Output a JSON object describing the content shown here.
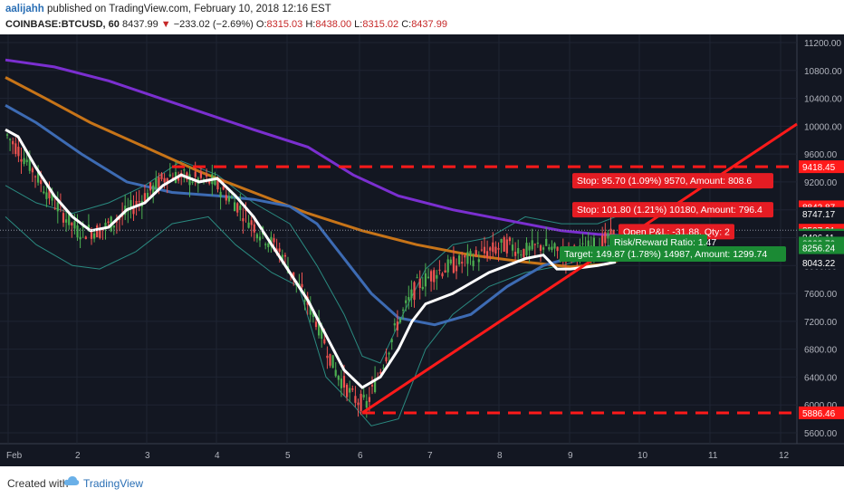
{
  "header": {
    "author": "aalijahh",
    "published": "published on TradingView.com, February 10, 2018 12:16 EST",
    "symbol": "COINBASE:BTCUSD, 60",
    "last": "8437.99",
    "change": "−233.02 (−2.69%)",
    "o_label": "O:",
    "o_val": "8315.03",
    "h_label": "H:",
    "h_val": "8438.00",
    "l_label": "L:",
    "l_val": "8315.02",
    "c_label": "C:",
    "c_val": "8437.99"
  },
  "footer": {
    "created": "Created with",
    "brand": "TradingView"
  },
  "colors": {
    "bg": "#131722",
    "grid": "#1f2433",
    "up": "#4caf50",
    "down": "#ef5350",
    "ma_white": "#ffffff",
    "ma_blue": "#3d6bb3",
    "ma_orange": "#c77418",
    "ma_purple": "#7b2fd0",
    "boll": "#2a8a80",
    "level": "#ff1a1a",
    "trend": "#ff1a1a"
  },
  "chart_data": {
    "type": "candlestick",
    "ylim": [
      5500,
      11300
    ],
    "y_ticks": [
      "11200.00",
      "10800.00",
      "10400.00",
      "10000.00",
      "9600.00",
      "9200.00",
      "8800.00",
      "8400.00",
      "8000.00",
      "7600.00",
      "7200.00",
      "6800.00",
      "6400.00",
      "6000.00",
      "5600.00"
    ],
    "x_ticks": [
      "Feb",
      "2",
      "3",
      "4",
      "5",
      "6",
      "7",
      "8",
      "9",
      "10",
      "11",
      "12"
    ],
    "price_labels": [
      {
        "text": "9418.45",
        "color": "#ff1a1a",
        "price": 9418.45
      },
      {
        "text": "8842.87",
        "color": "#ff1a1a",
        "price": 8842.87
      },
      {
        "text": "8747.17",
        "color": "#131722",
        "price": 8747.17
      },
      {
        "text": "8507.91",
        "color": "#ff1a1a",
        "price": 8507.91
      },
      {
        "text": "8437.99",
        "color": "#1b8a34",
        "price": 8437.99
      },
      {
        "text": "8043.22",
        "color": "#131722",
        "price": 8043.22
      },
      {
        "text": "8406.11",
        "color": "#131722",
        "price": 8406.11
      },
      {
        "text": "8322.70",
        "color": "#1b8a34",
        "price": 8322.7
      },
      {
        "text": "8256.24",
        "color": "#1b8a34",
        "price": 8256.24
      },
      {
        "text": "5886.46",
        "color": "#ff1a1a",
        "price": 5886.46
      }
    ],
    "levels": [
      9418.45,
      5886.46
    ],
    "position_labels": [
      {
        "text": "Stop: 95.70 (1.09%) 9570, Amount: 808.6",
        "color": "#e51c23"
      },
      {
        "text": "Stop: 101.80 (1.21%) 10180, Amount: 796.4",
        "color": "#e51c23"
      },
      {
        "text": "Open P&L: -31.88, Qty: 2",
        "color": "#e51c23"
      },
      {
        "text": "Risk/Reward Ratio: 1.47",
        "color": "#1b8a34"
      },
      {
        "text": "Target: 149.87 (1.78%) 14987, Amount: 1299.74",
        "color": "#1b8a34"
      }
    ]
  }
}
